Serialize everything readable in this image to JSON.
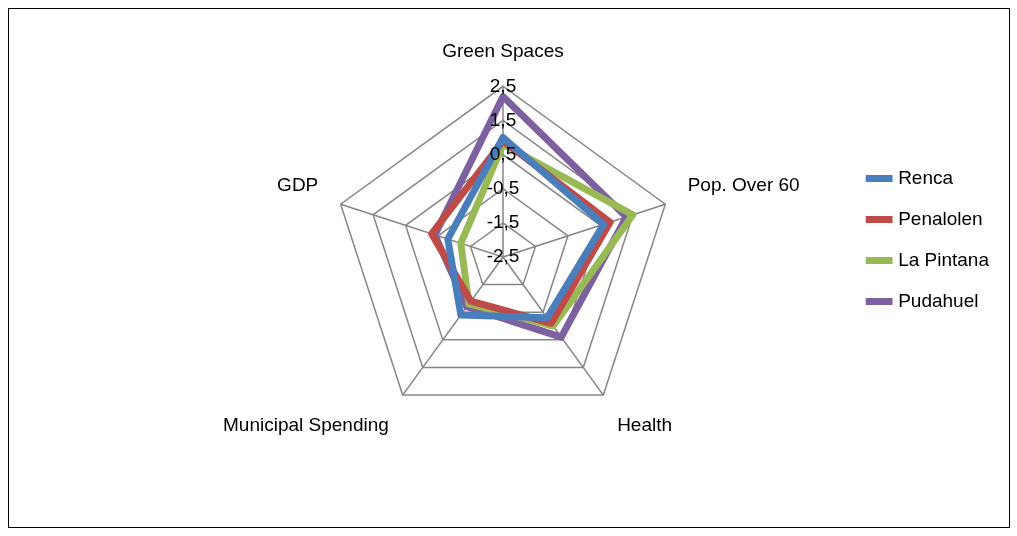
{
  "chart_data": {
    "type": "radar",
    "categories": [
      "Green Spaces",
      "Pop. Over 60",
      "Health",
      "Municipal Spending",
      "GDP"
    ],
    "series": [
      {
        "name": "Renca",
        "color": "#4a7ebb",
        "values": [
          1.0,
          0.6,
          -0.3,
          -0.4,
          -0.8
        ]
      },
      {
        "name": "Penalolen",
        "color": "#be4b48",
        "values": [
          0.9,
          0.8,
          -0.1,
          -0.9,
          -0.3
        ]
      },
      {
        "name": "La Pintana",
        "color": "#98b954",
        "values": [
          0.8,
          1.5,
          0.0,
          -0.8,
          -1.2
        ]
      },
      {
        "name": "Pudahuel",
        "color": "#7d60a0",
        "values": [
          2.2,
          1.3,
          0.4,
          -0.7,
          -0.4
        ]
      }
    ],
    "ylim": [
      -2.5,
      2.5
    ],
    "yticks": [
      {
        "value": -2.5,
        "label": "-2,5"
      },
      {
        "value": -1.5,
        "label": "-1,5"
      },
      {
        "value": -0.5,
        "label": "-0,5"
      },
      {
        "value": 0.5,
        "label": "0,5"
      },
      {
        "value": 1.5,
        "label": "1,5"
      },
      {
        "value": 2.5,
        "label": "2,5"
      }
    ],
    "grid": true,
    "legend": "right",
    "marker": "none",
    "line_style": "solid"
  }
}
